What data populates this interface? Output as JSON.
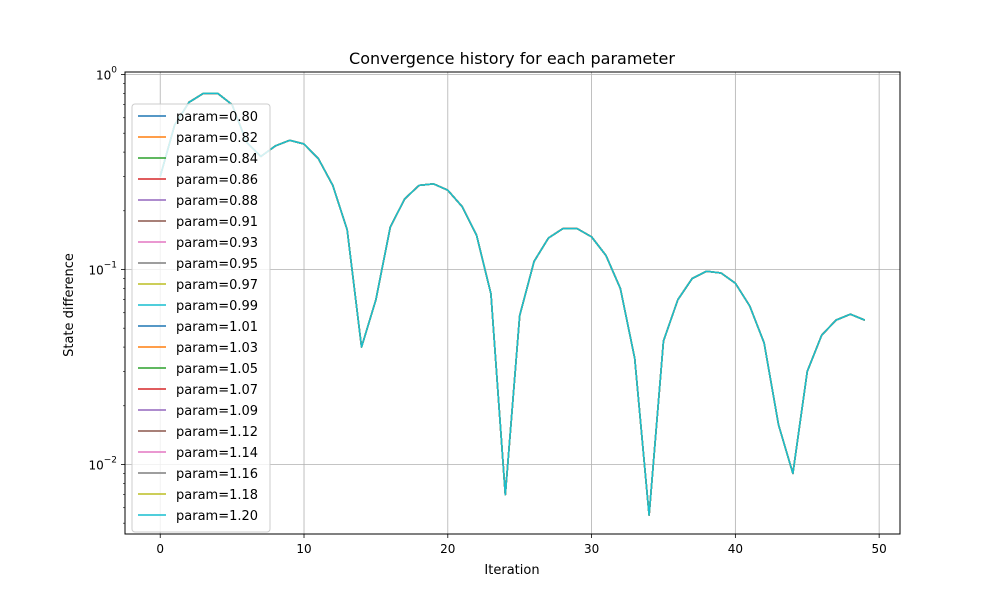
{
  "chart_data": {
    "type": "line",
    "title": "Convergence history for each parameter",
    "xlabel": "Iteration",
    "ylabel": "State difference",
    "y_scale": "log",
    "xlim": [
      -2.45,
      51.45
    ],
    "ylim": [
      0.0044,
      1.03
    ],
    "x_ticks": [
      0,
      10,
      20,
      30,
      40,
      50
    ],
    "x_tick_labels": [
      "0",
      "10",
      "20",
      "30",
      "40",
      "50"
    ],
    "y_ticks": [
      0.01,
      0.1,
      1
    ],
    "y_tick_labels": [
      {
        "base": "10",
        "exp": "−2"
      },
      {
        "base": "10",
        "exp": "−1"
      },
      {
        "base": "10",
        "exp": "0"
      }
    ],
    "grid": true,
    "legend_position": "upper-left",
    "x": [
      0,
      1,
      2,
      3,
      4,
      5,
      6,
      7,
      8,
      9,
      10,
      11,
      12,
      13,
      14,
      15,
      16,
      17,
      18,
      19,
      20,
      21,
      22,
      23,
      24,
      25,
      26,
      27,
      28,
      29,
      30,
      31,
      32,
      33,
      34,
      35,
      36,
      37,
      38,
      39,
      40,
      41,
      42,
      43,
      44,
      45,
      46,
      47,
      48,
      49
    ],
    "y_shared": [
      0.3,
      0.55,
      0.72,
      0.8,
      0.8,
      0.7,
      0.45,
      0.38,
      0.43,
      0.46,
      0.44,
      0.37,
      0.27,
      0.16,
      0.04,
      0.07,
      0.165,
      0.23,
      0.27,
      0.275,
      0.255,
      0.21,
      0.15,
      0.075,
      0.007,
      0.058,
      0.11,
      0.145,
      0.162,
      0.162,
      0.147,
      0.118,
      0.08,
      0.035,
      0.0055,
      0.043,
      0.07,
      0.09,
      0.098,
      0.096,
      0.085,
      0.065,
      0.042,
      0.016,
      0.009,
      0.03,
      0.046,
      0.055,
      0.059,
      0.055
    ],
    "series": [
      {
        "name": "param=0.80",
        "color": "#1f77b4"
      },
      {
        "name": "param=0.82",
        "color": "#ff7f0e"
      },
      {
        "name": "param=0.84",
        "color": "#2ca02c"
      },
      {
        "name": "param=0.86",
        "color": "#d62728"
      },
      {
        "name": "param=0.88",
        "color": "#9467bd"
      },
      {
        "name": "param=0.91",
        "color": "#8c564b"
      },
      {
        "name": "param=0.93",
        "color": "#e377c2"
      },
      {
        "name": "param=0.95",
        "color": "#7f7f7f"
      },
      {
        "name": "param=0.97",
        "color": "#bcbd22"
      },
      {
        "name": "param=0.99",
        "color": "#17becf"
      },
      {
        "name": "param=1.01",
        "color": "#1f77b4"
      },
      {
        "name": "param=1.03",
        "color": "#ff7f0e"
      },
      {
        "name": "param=1.05",
        "color": "#2ca02c"
      },
      {
        "name": "param=1.07",
        "color": "#d62728"
      },
      {
        "name": "param=1.09",
        "color": "#9467bd"
      },
      {
        "name": "param=1.12",
        "color": "#8c564b"
      },
      {
        "name": "param=1.14",
        "color": "#e377c2"
      },
      {
        "name": "param=1.16",
        "color": "#7f7f7f"
      },
      {
        "name": "param=1.18",
        "color": "#bcbd22"
      },
      {
        "name": "param=1.20",
        "color": "#17becf"
      }
    ]
  }
}
